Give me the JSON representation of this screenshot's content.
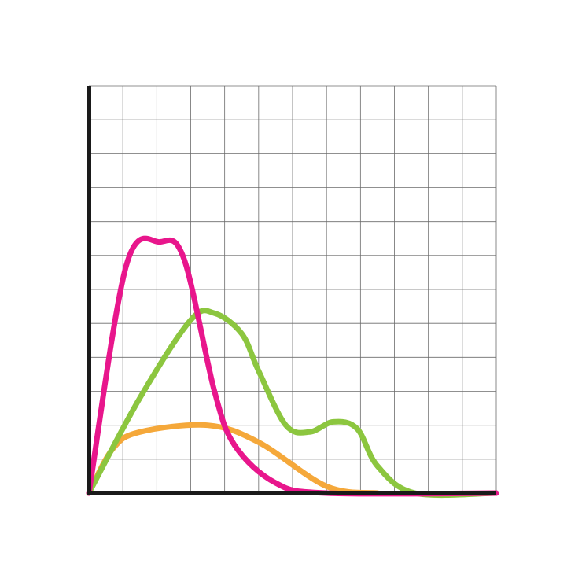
{
  "chart_data": {
    "type": "line",
    "title": "",
    "xlabel": "",
    "ylabel": "",
    "xlim": [
      0,
      12
    ],
    "ylim": [
      0,
      12
    ],
    "grid": true,
    "colors": {
      "background": "#ffffff",
      "grid": "#6b6b6b",
      "axis": "#1a1a1a"
    },
    "series": [
      {
        "color": "#f5a83a",
        "points": [
          [
            0,
            0
          ],
          [
            0.7,
            1.3
          ],
          [
            1.5,
            1.8
          ],
          [
            3.5,
            2.0
          ],
          [
            5.0,
            1.5
          ],
          [
            7.0,
            0.2
          ],
          [
            8.5,
            0
          ]
        ]
      },
      {
        "color": "#8cc63f",
        "points": [
          [
            0,
            0
          ],
          [
            1.5,
            2.8
          ],
          [
            3.0,
            5.1
          ],
          [
            3.7,
            5.3
          ],
          [
            4.5,
            4.7
          ],
          [
            5.0,
            3.6
          ],
          [
            5.8,
            2.0
          ],
          [
            6.5,
            1.8
          ],
          [
            7.2,
            2.1
          ],
          [
            7.9,
            1.9
          ],
          [
            8.5,
            0.8
          ],
          [
            9.6,
            0
          ],
          [
            12,
            0
          ]
        ]
      },
      {
        "color": "#e8168c",
        "points": [
          [
            0,
            0
          ],
          [
            1.1,
            6.7
          ],
          [
            2.1,
            7.4
          ],
          [
            2.8,
            6.9
          ],
          [
            3.7,
            3.0
          ],
          [
            4.3,
            1.4
          ],
          [
            5.5,
            0.3
          ],
          [
            7.0,
            0
          ],
          [
            12,
            0
          ]
        ]
      }
    ]
  }
}
